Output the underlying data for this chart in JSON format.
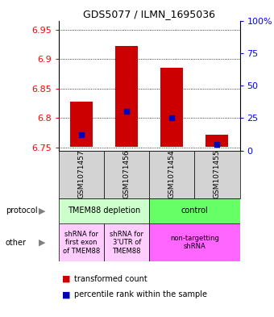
{
  "title": "GDS5077 / ILMN_1695036",
  "samples": [
    "GSM1071457",
    "GSM1071456",
    "GSM1071454",
    "GSM1071455"
  ],
  "bar_bottoms": [
    6.752,
    6.752,
    6.752,
    6.752
  ],
  "bar_tops": [
    6.828,
    6.922,
    6.885,
    6.772
  ],
  "blue_marks": [
    6.772,
    6.812,
    6.8,
    6.755
  ],
  "ylim": [
    6.745,
    6.965
  ],
  "yticks_left": [
    6.75,
    6.8,
    6.85,
    6.9,
    6.95
  ],
  "ytick_labels_left": [
    "6.75",
    "6.8",
    "6.85",
    "6.9",
    "6.95"
  ],
  "yticks_right_pct": [
    0,
    25,
    50,
    75,
    100
  ],
  "ytick_labels_right": [
    "0",
    "25",
    "50",
    "75",
    "100%"
  ],
  "bar_color": "#cc0000",
  "blue_color": "#0000bb",
  "protocol_labels": [
    "TMEM88 depletion",
    "control"
  ],
  "protocol_colors": [
    "#ccffcc",
    "#66ff66"
  ],
  "other_labels": [
    "shRNA for\nfirst exon\nof TMEM88",
    "shRNA for\n3'UTR of\nTMEM88",
    "non-targetting\nshRNA"
  ],
  "other_colors": [
    "#ffccff",
    "#ffccff",
    "#ff66ff"
  ],
  "legend_items": [
    "transformed count",
    "percentile rank within the sample"
  ],
  "legend_colors": [
    "#cc0000",
    "#0000bb"
  ],
  "background_color": "#ffffff"
}
